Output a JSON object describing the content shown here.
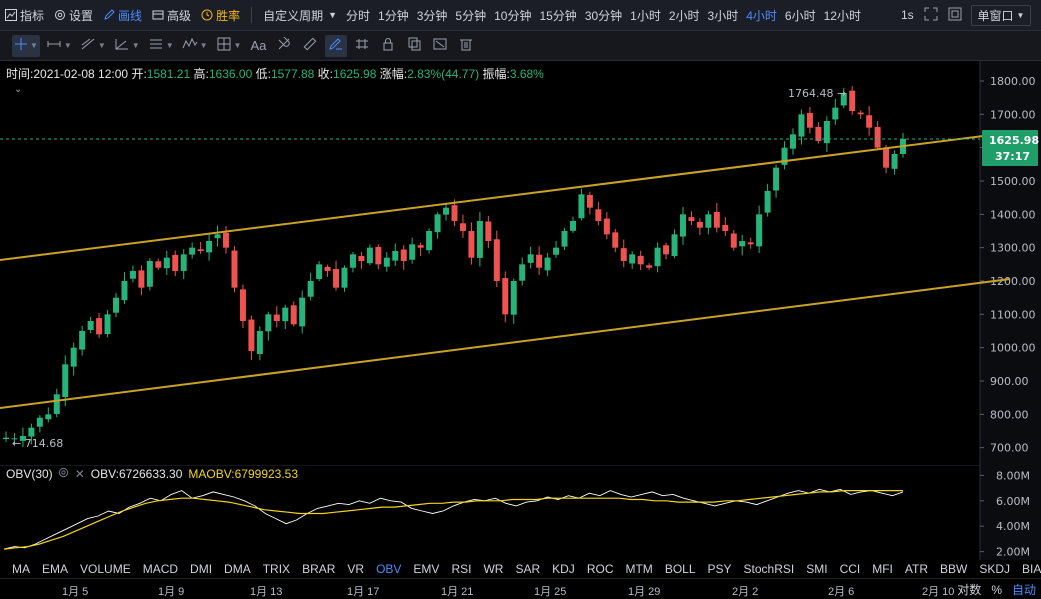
{
  "topbar": {
    "indicators": "指标",
    "settings": "设置",
    "draw": "画线",
    "advanced": "高级",
    "winrate": "胜率",
    "custom_period": "自定义周期",
    "periods": [
      "分时",
      "1分钟",
      "3分钟",
      "5分钟",
      "10分钟",
      "15分钟",
      "30分钟",
      "1小时",
      "2小时",
      "3小时",
      "4小时",
      "6小时",
      "12小时"
    ],
    "active_period": "4小时",
    "seconds": "1s",
    "single_window": "单窗口"
  },
  "toolbar": {
    "text_tool": "Aa"
  },
  "ohlc": {
    "time_label": "时间:",
    "time": "2021-02-08 12:00",
    "open_label": "开:",
    "open": "1581.21",
    "high_label": "高:",
    "high": "1636.00",
    "low_label": "低:",
    "low": "1577.88",
    "close_label": "收:",
    "close": "1625.98",
    "change_label": "涨幅:",
    "change": "2.83%(44.77)",
    "amp_label": "振幅:",
    "amp": "3.68%"
  },
  "price_axis": {
    "ticks": [
      "1800.00",
      "1700.00",
      "1600.00",
      "1500.00",
      "1400.00",
      "1300.00",
      "1200.00",
      "1100.00",
      "1000.00",
      "900.00",
      "800.00",
      "700.00"
    ],
    "last_price": "1625.98",
    "countdown": "37:17",
    "max_label": "1764.48 →",
    "min_label": "← 714.68"
  },
  "indicator": {
    "name": "OBV(30)",
    "obv_label": "OBV:",
    "obv": "6726633.30",
    "maobv_label": "MAOBV:",
    "maobv": "6799923.53",
    "ticks": [
      "8.00M",
      "6.00M",
      "4.00M",
      "2.00M"
    ]
  },
  "indicator_tabs": [
    "MA",
    "EMA",
    "VOLUME",
    "MACD",
    "DMI",
    "DMA",
    "TRIX",
    "BRAR",
    "VR",
    "OBV",
    "EMV",
    "RSI",
    "WR",
    "SAR",
    "KDJ",
    "ROC",
    "MTM",
    "BOLL",
    "PSY",
    "StochRSI",
    "SMI",
    "CCI",
    "MFI",
    "ATR",
    "BBW",
    "SKDJ",
    "BIAS"
  ],
  "active_indicator": "OBV",
  "x_axis": [
    "1月 5",
    "1月 9",
    "1月 13",
    "1月 17",
    "1月 21",
    "1月 25",
    "1月 29",
    "2月 2",
    "2月 6",
    "2月 10"
  ],
  "scale_options": {
    "log": "对数",
    "percent": "%",
    "auto": "自动"
  },
  "colors": {
    "up": "#26b47b",
    "down": "#ef5350",
    "trendline": "#c9a227",
    "accent": "#4c8dff",
    "obv_line": "#ffffff",
    "maobv_line": "#f3d51b"
  },
  "chart_data": [
    {
      "type": "candlestick",
      "title": "",
      "ylim": [
        660,
        1830
      ],
      "y_ticks": [
        700,
        800,
        900,
        1000,
        1100,
        1200,
        1300,
        1400,
        1500,
        1600,
        1700,
        1800
      ],
      "x_ticks": [
        "1月 5",
        "1月 9",
        "1月 13",
        "1月 17",
        "1月 21",
        "1月 25",
        "1月 29",
        "2月 2",
        "2月 6",
        "2月 10"
      ],
      "close_path": [
        730,
        728,
        735,
        760,
        790,
        800,
        860,
        950,
        1000,
        1050,
        1080,
        1040,
        1100,
        1150,
        1200,
        1230,
        1180,
        1260,
        1240,
        1270,
        1230,
        1280,
        1300,
        1290,
        1320,
        1340,
        1300,
        1180,
        1080,
        990,
        1050,
        1100,
        1080,
        1120,
        1070,
        1150,
        1200,
        1250,
        1230,
        1180,
        1240,
        1280,
        1260,
        1300,
        1250,
        1270,
        1290,
        1260,
        1310,
        1300,
        1350,
        1400,
        1420,
        1380,
        1350,
        1270,
        1380,
        1320,
        1200,
        1100,
        1200,
        1250,
        1280,
        1240,
        1270,
        1300,
        1350,
        1380,
        1460,
        1420,
        1380,
        1340,
        1300,
        1260,
        1280,
        1250,
        1240,
        1300,
        1280,
        1340,
        1400,
        1380,
        1360,
        1400,
        1360,
        1350,
        1300,
        1320,
        1310,
        1400,
        1470,
        1540,
        1600,
        1640,
        1700,
        1660,
        1620,
        1680,
        1720,
        1764,
        1710,
        1700,
        1660,
        1600,
        1540,
        1581,
        1626
      ],
      "max_high": 1764.48,
      "min_low": 714.68,
      "last": 1625.98,
      "trendlines": [
        {
          "from": [
            "start",
            1263
          ],
          "to": [
            "end",
            1645
          ]
        },
        {
          "from": [
            "start",
            819
          ],
          "to": [
            "end",
            1206
          ]
        }
      ]
    },
    {
      "type": "line",
      "title": "",
      "ylim": [
        1.5,
        8.5
      ],
      "y_ticks": [
        2,
        4,
        6,
        8
      ],
      "y_unit": "M",
      "series": [
        {
          "name": "OBV",
          "values": [
            2.2,
            2.4,
            2.3,
            2.6,
            3.0,
            3.4,
            3.8,
            4.2,
            4.6,
            4.8,
            5.2,
            5.0,
            5.5,
            5.8,
            6.2,
            6.0,
            6.5,
            6.8,
            6.2,
            6.4,
            6.7,
            6.5,
            6.3,
            6.0,
            5.6,
            5.0,
            4.6,
            4.2,
            4.5,
            5.0,
            5.4,
            5.6,
            5.8,
            5.7,
            6.0,
            5.8,
            6.2,
            6.0,
            5.9,
            5.4,
            5.2,
            5.0,
            5.2,
            5.6,
            5.9,
            6.1,
            6.0,
            6.2,
            5.8,
            5.6,
            5.9,
            6.0,
            6.3,
            6.1,
            6.4,
            6.2,
            6.6,
            6.4,
            6.8,
            6.5,
            6.3,
            6.5,
            6.7,
            6.4,
            6.5,
            6.2,
            6.0,
            5.8,
            5.6,
            5.8,
            6.0,
            5.9,
            5.7,
            6.0,
            6.3,
            6.6,
            6.8,
            6.6,
            6.9,
            6.7,
            6.9,
            6.5,
            6.7,
            6.8,
            6.6,
            6.4,
            6.7
          ]
        },
        {
          "name": "MAOBV",
          "values": [
            2.2,
            2.3,
            2.4,
            2.6,
            2.9,
            3.2,
            3.6,
            4.0,
            4.4,
            4.8,
            5.2,
            5.5,
            5.8,
            6.0,
            6.1,
            6.2,
            6.2,
            6.1,
            6.0,
            5.9,
            5.7,
            5.5,
            5.3,
            5.2,
            5.1,
            5.0,
            5.0,
            5.0,
            5.1,
            5.2,
            5.3,
            5.4,
            5.5,
            5.5,
            5.6,
            5.7,
            5.8,
            5.8,
            5.9,
            5.9,
            6.0,
            6.0,
            6.0,
            6.1,
            6.1,
            6.1,
            6.2,
            6.2,
            6.2,
            6.2,
            6.2,
            6.2,
            6.2,
            6.1,
            6.1,
            6.0,
            6.0,
            5.9,
            5.9,
            5.9,
            5.9,
            6.0,
            6.0,
            6.1,
            6.2,
            6.3,
            6.4,
            6.5,
            6.6,
            6.7,
            6.7,
            6.8,
            6.8,
            6.8,
            6.8,
            6.8,
            6.8
          ]
        }
      ]
    }
  ]
}
